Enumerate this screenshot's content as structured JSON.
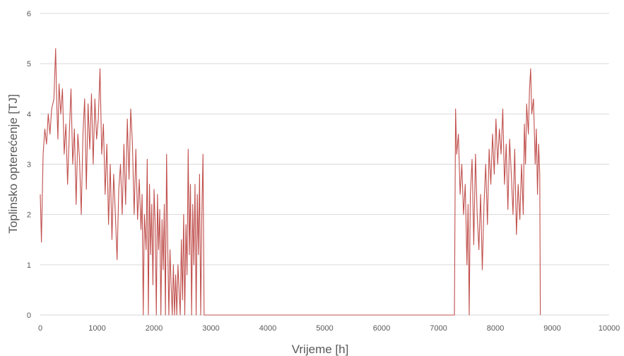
{
  "chart_data": {
    "type": "line",
    "title": "",
    "xlabel": "Vrijeme [h]",
    "ylabel": "Toplinsko opterećenje [TJ]",
    "xlim": [
      0,
      10000
    ],
    "ylim": [
      0,
      6
    ],
    "x_ticks": [
      "0",
      "1000",
      "2000",
      "3000",
      "4000",
      "5000",
      "6000",
      "7000",
      "8000",
      "9000",
      "10000"
    ],
    "y_ticks": [
      "0",
      "1",
      "2",
      "3",
      "4",
      "5",
      "6"
    ],
    "grid": "horizontal",
    "legend": "none",
    "series": [
      {
        "color": "#c0504d",
        "points": [
          [
            0,
            2.4
          ],
          [
            20,
            1.45
          ],
          [
            50,
            3.2
          ],
          [
            80,
            3.7
          ],
          [
            110,
            3.4
          ],
          [
            140,
            4.0
          ],
          [
            170,
            3.6
          ],
          [
            200,
            4.1
          ],
          [
            240,
            4.3
          ],
          [
            270,
            5.3
          ],
          [
            290,
            4.2
          ],
          [
            310,
            3.5
          ],
          [
            330,
            4.6
          ],
          [
            360,
            4.0
          ],
          [
            390,
            4.5
          ],
          [
            420,
            3.2
          ],
          [
            450,
            3.8
          ],
          [
            480,
            2.6
          ],
          [
            510,
            3.6
          ],
          [
            540,
            4.5
          ],
          [
            570,
            3.0
          ],
          [
            600,
            3.7
          ],
          [
            630,
            2.2
          ],
          [
            660,
            3.6
          ],
          [
            690,
            3.1
          ],
          [
            720,
            2.0
          ],
          [
            750,
            3.6
          ],
          [
            780,
            4.3
          ],
          [
            810,
            2.5
          ],
          [
            840,
            4.2
          ],
          [
            870,
            3.3
          ],
          [
            900,
            4.4
          ],
          [
            930,
            3.0
          ],
          [
            960,
            4.3
          ],
          [
            990,
            3.5
          ],
          [
            1020,
            3.9
          ],
          [
            1050,
            4.9
          ],
          [
            1080,
            3.2
          ],
          [
            1110,
            3.8
          ],
          [
            1140,
            2.4
          ],
          [
            1170,
            3.4
          ],
          [
            1200,
            1.8
          ],
          [
            1230,
            3.0
          ],
          [
            1260,
            1.5
          ],
          [
            1290,
            2.8
          ],
          [
            1320,
            2.0
          ],
          [
            1350,
            1.1
          ],
          [
            1380,
            2.5
          ],
          [
            1410,
            3.0
          ],
          [
            1440,
            2.0
          ],
          [
            1470,
            3.4
          ],
          [
            1500,
            2.2
          ],
          [
            1530,
            3.9
          ],
          [
            1560,
            2.7
          ],
          [
            1590,
            4.1
          ],
          [
            1620,
            3.4
          ],
          [
            1650,
            2.0
          ],
          [
            1680,
            3.3
          ],
          [
            1710,
            1.9
          ],
          [
            1740,
            2.7
          ],
          [
            1770,
            1.7
          ],
          [
            1790,
            2.4
          ],
          [
            1810,
            0.0
          ],
          [
            1830,
            2.0
          ],
          [
            1860,
            1.3
          ],
          [
            1880,
            3.1
          ],
          [
            1900,
            0.0
          ],
          [
            1920,
            2.6
          ],
          [
            1940,
            1.2
          ],
          [
            1960,
            2.2
          ],
          [
            1980,
            0.6
          ],
          [
            2000,
            2.5
          ],
          [
            2020,
            1.8
          ],
          [
            2040,
            0.0
          ],
          [
            2060,
            2.4
          ],
          [
            2080,
            1.3
          ],
          [
            2100,
            2.1
          ],
          [
            2120,
            0.0
          ],
          [
            2140,
            1.9
          ],
          [
            2160,
            0.9
          ],
          [
            2180,
            2.2
          ],
          [
            2200,
            0.0
          ],
          [
            2220,
            3.2
          ],
          [
            2240,
            1.4
          ],
          [
            2260,
            0.0
          ],
          [
            2280,
            1.3
          ],
          [
            2300,
            0.6
          ],
          [
            2320,
            0.0
          ],
          [
            2340,
            1.0
          ],
          [
            2360,
            0.0
          ],
          [
            2380,
            0.8
          ],
          [
            2400,
            0.0
          ],
          [
            2420,
            1.0
          ],
          [
            2440,
            0.5
          ],
          [
            2460,
            0.0
          ],
          [
            2480,
            1.5
          ],
          [
            2500,
            0.3
          ],
          [
            2520,
            2.0
          ],
          [
            2540,
            0.0
          ],
          [
            2560,
            1.8
          ],
          [
            2580,
            0.8
          ],
          [
            2600,
            3.3
          ],
          [
            2620,
            1.2
          ],
          [
            2640,
            2.6
          ],
          [
            2660,
            0.0
          ],
          [
            2680,
            2.2
          ],
          [
            2700,
            1.0
          ],
          [
            2720,
            2.6
          ],
          [
            2740,
            0.0
          ],
          [
            2760,
            2.4
          ],
          [
            2780,
            1.2
          ],
          [
            2800,
            2.8
          ],
          [
            2820,
            0.0
          ],
          [
            2840,
            2.0
          ],
          [
            2860,
            3.2
          ],
          [
            2880,
            0.0
          ],
          [
            3000,
            0.0
          ],
          [
            4000,
            0.0
          ],
          [
            5000,
            0.0
          ],
          [
            6000,
            0.0
          ],
          [
            7000,
            0.0
          ],
          [
            7280,
            0.0
          ],
          [
            7300,
            4.1
          ],
          [
            7320,
            3.2
          ],
          [
            7350,
            3.6
          ],
          [
            7380,
            2.4
          ],
          [
            7410,
            3.0
          ],
          [
            7440,
            2.0
          ],
          [
            7470,
            2.6
          ],
          [
            7500,
            1.0
          ],
          [
            7520,
            2.2
          ],
          [
            7540,
            0.0
          ],
          [
            7560,
            2.4
          ],
          [
            7590,
            3.1
          ],
          [
            7620,
            1.4
          ],
          [
            7650,
            3.2
          ],
          [
            7680,
            2.0
          ],
          [
            7710,
            1.3
          ],
          [
            7740,
            2.4
          ],
          [
            7770,
            0.9
          ],
          [
            7800,
            2.2
          ],
          [
            7830,
            3.0
          ],
          [
            7860,
            1.8
          ],
          [
            7890,
            3.3
          ],
          [
            7920,
            2.6
          ],
          [
            7950,
            3.6
          ],
          [
            7980,
            2.8
          ],
          [
            8010,
            3.9
          ],
          [
            8040,
            3.0
          ],
          [
            8070,
            3.7
          ],
          [
            8100,
            3.2
          ],
          [
            8130,
            4.1
          ],
          [
            8160,
            2.6
          ],
          [
            8190,
            3.4
          ],
          [
            8220,
            2.1
          ],
          [
            8250,
            3.5
          ],
          [
            8280,
            2.8
          ],
          [
            8310,
            2.0
          ],
          [
            8340,
            3.3
          ],
          [
            8370,
            1.6
          ],
          [
            8400,
            2.6
          ],
          [
            8430,
            1.9
          ],
          [
            8460,
            3.0
          ],
          [
            8490,
            2.0
          ],
          [
            8510,
            3.8
          ],
          [
            8530,
            3.0
          ],
          [
            8550,
            4.2
          ],
          [
            8580,
            3.6
          ],
          [
            8600,
            4.5
          ],
          [
            8620,
            4.9
          ],
          [
            8640,
            4.0
          ],
          [
            8670,
            4.3
          ],
          [
            8700,
            3.0
          ],
          [
            8720,
            3.7
          ],
          [
            8740,
            2.4
          ],
          [
            8760,
            3.4
          ],
          [
            8780,
            2.8
          ],
          [
            8790,
            0.0
          ]
        ]
      }
    ]
  }
}
